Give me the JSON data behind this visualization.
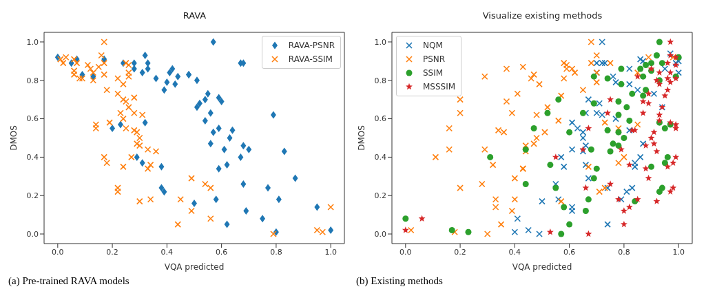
{
  "chart_data": [
    {
      "type": "scatter",
      "title": "RAVA",
      "xlabel": "VQA predicted",
      "ylabel": "DMOS",
      "xlim": [
        -0.05,
        1.05
      ],
      "ylim": [
        -0.05,
        1.05
      ],
      "xticks": [
        {
          "value": 0,
          "label": "0.0"
        },
        {
          "value": 0.2,
          "label": "0.2"
        },
        {
          "value": 0.4,
          "label": "0.4"
        },
        {
          "value": 0.6,
          "label": "0.6"
        },
        {
          "value": 0.8,
          "label": "0.8"
        },
        {
          "value": 1,
          "label": "1.0"
        }
      ],
      "yticks": [
        {
          "value": 0,
          "label": "0.0"
        },
        {
          "value": 0.2,
          "label": "0.2"
        },
        {
          "value": 0.4,
          "label": "0.4"
        },
        {
          "value": 0.6,
          "label": "0.6"
        },
        {
          "value": 0.8,
          "label": "0.8"
        },
        {
          "value": 1,
          "label": "1.0"
        }
      ],
      "legend": "top right",
      "annotations": [
        "(a) Pre-trained RAVA models"
      ],
      "series": [
        {
          "name": "RAVA-PSNR",
          "color": "#1f77b4",
          "marker": "diamond",
          "x": [
            0.0,
            0.05,
            0.07,
            0.09,
            0.13,
            0.17,
            0.24,
            0.28,
            0.28,
            0.32,
            0.33,
            0.33,
            0.31,
            0.36,
            0.4,
            0.42,
            0.41,
            0.44,
            0.43,
            0.39,
            0.48,
            0.32,
            0.23,
            0.2,
            0.29,
            0.31,
            0.38,
            0.38,
            0.39,
            0.57,
            0.67,
            0.68,
            0.48,
            0.51,
            0.55,
            0.54,
            0.52,
            0.51,
            0.59,
            0.6,
            0.56,
            0.54,
            0.79,
            0.59,
            0.57,
            0.64,
            0.63,
            0.56,
            0.61,
            0.68,
            0.7,
            0.83,
            0.67,
            0.62,
            0.59,
            0.87,
            0.68,
            0.77,
            0.81,
            0.5,
            0.58,
            0.69,
            0.95,
            0.75,
            0.62,
            0.8,
            1.0
          ],
          "values": [
            0.92,
            0.89,
            0.91,
            0.83,
            0.82,
            0.91,
            0.89,
            0.89,
            0.86,
            0.93,
            0.89,
            0.86,
            0.84,
            0.81,
            0.79,
            0.86,
            0.84,
            0.82,
            0.78,
            0.75,
            0.83,
            0.58,
            0.57,
            0.55,
            0.4,
            0.37,
            0.35,
            0.24,
            0.22,
            1.0,
            0.89,
            0.89,
            0.83,
            0.8,
            0.73,
            0.7,
            0.68,
            0.66,
            0.71,
            0.69,
            0.63,
            0.59,
            0.62,
            0.55,
            0.53,
            0.54,
            0.5,
            0.47,
            0.44,
            0.46,
            0.44,
            0.43,
            0.4,
            0.36,
            0.34,
            0.29,
            0.26,
            0.24,
            0.18,
            0.16,
            0.18,
            0.12,
            0.14,
            0.08,
            0.05,
            0.01,
            0.02
          ]
        },
        {
          "name": "RAVA-SSIM",
          "color": "#ff7f0e",
          "marker": "cross",
          "x": [
            0.03,
            0.02,
            0.01,
            0.06,
            0.07,
            0.06,
            0.06,
            0.08,
            0.09,
            0.11,
            0.12,
            0.13,
            0.13,
            0.15,
            0.16,
            0.17,
            0.17,
            0.17,
            0.18,
            0.22,
            0.24,
            0.22,
            0.24,
            0.25,
            0.26,
            0.25,
            0.26,
            0.26,
            0.26,
            0.28,
            0.28,
            0.23,
            0.24,
            0.31,
            0.19,
            0.14,
            0.14,
            0.25,
            0.28,
            0.29,
            0.3,
            0.29,
            0.3,
            0.33,
            0.36,
            0.17,
            0.18,
            0.27,
            0.24,
            0.33,
            0.34,
            0.22,
            0.22,
            0.3,
            0.34,
            0.45,
            0.44,
            0.49,
            0.54,
            0.56,
            0.49,
            0.56,
            0.79,
            0.95,
            0.97,
            1.0
          ],
          "values": [
            0.92,
            0.89,
            0.91,
            0.91,
            0.89,
            0.85,
            0.83,
            0.81,
            0.81,
            0.88,
            0.86,
            0.84,
            0.8,
            0.87,
            0.93,
            1.0,
            0.89,
            0.83,
            0.75,
            0.81,
            0.78,
            0.73,
            0.7,
            0.69,
            0.66,
            0.89,
            0.88,
            0.84,
            0.82,
            0.71,
            0.63,
            0.63,
            0.6,
            0.62,
            0.58,
            0.57,
            0.55,
            0.55,
            0.54,
            0.53,
            0.5,
            0.47,
            0.46,
            0.44,
            0.43,
            0.4,
            0.37,
            0.4,
            0.35,
            0.34,
            0.36,
            0.24,
            0.22,
            0.17,
            0.18,
            0.18,
            0.05,
            0.29,
            0.26,
            0.24,
            0.12,
            0.08,
            0.0,
            0.02,
            0.01,
            0.14
          ]
        }
      ]
    },
    {
      "type": "scatter",
      "title": "Visualize existing methods",
      "xlabel": "VQA predicted",
      "ylabel": "DMOS",
      "xlim": [
        -0.05,
        1.05
      ],
      "ylim": [
        -0.05,
        1.05
      ],
      "xticks": [
        {
          "value": 0,
          "label": "0.0"
        },
        {
          "value": 0.2,
          "label": "0.2"
        },
        {
          "value": 0.4,
          "label": "0.4"
        },
        {
          "value": 0.6,
          "label": "0.6"
        },
        {
          "value": 0.8,
          "label": "0.8"
        },
        {
          "value": 1,
          "label": "1.0"
        }
      ],
      "yticks": [
        {
          "value": 0,
          "label": "0.0"
        },
        {
          "value": 0.2,
          "label": "0.2"
        },
        {
          "value": 0.4,
          "label": "0.4"
        },
        {
          "value": 0.6,
          "label": "0.6"
        },
        {
          "value": 0.8,
          "label": "0.8"
        },
        {
          "value": 1,
          "label": "1.0"
        }
      ],
      "legend": "top left",
      "annotations": [
        "(b) Existing methods"
      ],
      "series": [
        {
          "name": "NQM",
          "color": "#1f77b4",
          "marker": "cross",
          "x": [
            0.72,
            0.7,
            0.72,
            0.73,
            0.7,
            0.76,
            0.77,
            0.82,
            0.82,
            0.86,
            0.87,
            0.95,
            0.97,
            1.0,
            1.0,
            0.99,
            0.85,
            0.91,
            0.94,
            0.67,
            0.71,
            0.66,
            0.7,
            0.72,
            0.77,
            0.61,
            0.63,
            0.65,
            0.65,
            0.66,
            0.77,
            0.82,
            0.85,
            0.87,
            0.61,
            0.65,
            0.57,
            0.58,
            0.66,
            0.67,
            0.86,
            0.84,
            0.84,
            0.55,
            0.74,
            0.81,
            0.83,
            0.79,
            0.56,
            0.5,
            0.61,
            0.61,
            0.74,
            0.45,
            0.49,
            0.4,
            0.41
          ],
          "values": [
            1.0,
            0.89,
            0.89,
            0.89,
            0.84,
            0.82,
            0.79,
            0.86,
            0.78,
            0.91,
            0.9,
            0.86,
            0.94,
            0.9,
            0.84,
            0.89,
            0.75,
            0.73,
            0.66,
            0.7,
            0.68,
            0.63,
            0.63,
            0.62,
            0.6,
            0.58,
            0.55,
            0.53,
            0.5,
            0.46,
            null,
            0.54,
            null,
            0.47,
            0.44,
            0.43,
            0.4,
            0.35,
            0.36,
            0.29,
            0.4,
            0.37,
            0.35,
            0.26,
            0.24,
            0.22,
            0.24,
            0.18,
            0.18,
            0.17,
            0.14,
            0.12,
            0.05,
            0.02,
            0.0,
            0.01,
            0.08
          ]
        },
        {
          "name": "PSNR",
          "color": "#ff7f0e",
          "marker": "cross",
          "x": [
            0.02,
            0.18,
            0.11,
            0.16,
            0.16,
            0.2,
            0.2,
            0.2,
            0.29,
            0.28,
            0.29,
            0.3,
            0.32,
            0.33,
            0.34,
            0.33,
            0.36,
            0.35,
            0.37,
            0.37,
            0.39,
            0.39,
            0.4,
            0.4,
            0.41,
            0.43,
            0.43,
            0.44,
            0.44,
            0.47,
            0.46,
            0.49,
            0.52,
            0.48,
            0.56,
            0.51,
            0.48,
            0.47,
            0.43,
            0.58,
            0.59,
            0.59,
            0.61,
            0.62,
            0.58,
            0.57,
            0.65,
            0.68,
            0.7,
            0.68,
            0.7,
            0.7,
            0.75,
            0.73,
            0.78,
            0.8,
            0.78,
            0.67,
            0.71,
            0.73,
            0.57,
            0.85,
            0.85,
            0.89,
            0.98
          ],
          "values": [
            0.02,
            0.01,
            0.4,
            0.55,
            0.44,
            0.7,
            0.63,
            0.24,
            0.82,
            0.26,
            0.44,
            0.0,
            0.36,
            0.14,
            0.54,
            0.18,
            0.53,
            0.05,
            0.86,
            0.69,
            0.63,
            0.12,
            0.18,
            0.29,
            0.73,
            0.34,
            0.87,
            0.46,
            0.43,
            0.83,
            0.81,
            0.78,
            0.66,
            0.62,
            0.59,
            0.53,
            0.5,
            0.47,
            0.34,
            0.89,
            0.88,
            0.86,
            0.86,
            0.84,
            0.81,
            0.72,
            0.75,
            1.0,
            0.93,
            0.89,
            0.84,
            0.79,
            0.89,
            0.58,
            0.55,
            0.4,
            0.37,
            0.35,
            0.22,
            0.24,
            0.17,
            0.57,
            0.84,
            0.92,
            0.92
          ]
        },
        {
          "name": "SSIM",
          "color": "#2ca02c",
          "marker": "circle",
          "x": [
            0.93,
            0.92,
            0.79,
            0.86,
            0.88,
            0.9,
            0.94,
            0.87,
            0.9,
            0.93,
            1.0,
            0.99,
            0.69,
            0.74,
            0.79,
            0.88,
            0.87,
            0.83,
            0.56,
            0.69,
            0.78,
            0.81,
            0.52,
            0.65,
            0.78,
            0.82,
            0.93,
            0.97,
            0.47,
            0.6,
            0.74,
            0.78,
            0.8,
            0.95,
            0.76,
            0.78,
            0.75,
            0.68,
            0.44,
            0.96,
            0.95,
            0.9,
            0.53,
            0.7,
            0.69,
            0.44,
            0.55,
            0.94,
            0.93,
            0.67,
            0.84,
            0.58,
            0.66,
            0.6,
            0.57,
            0.0,
            0.17,
            0.23,
            0.31
          ],
          "values": [
            1.0,
            0.93,
            0.86,
            0.86,
            0.88,
            0.89,
            0.89,
            0.82,
            0.85,
            0.8,
            0.92,
            0.82,
            0.82,
            0.81,
            0.78,
            0.75,
            0.72,
            0.73,
            0.7,
            0.68,
            0.69,
            0.66,
            0.63,
            0.63,
            0.62,
            0.59,
            0.58,
            0.57,
            0.55,
            0.53,
            0.54,
            0.53,
            0.5,
            0.55,
            0.47,
            0.46,
            0.43,
            0.44,
            0.44,
            0.4,
            0.37,
            0.35,
            0.36,
            0.34,
            0.29,
            0.26,
            0.24,
            0.24,
            0.22,
            0.18,
            0.17,
            0.14,
            0.12,
            0.05,
            0.0,
            0.08,
            0.02,
            0.01,
            0.4
          ]
        },
        {
          "name": "MSSSIM",
          "color": "#d62728",
          "marker": "star",
          "x": [
            0.97,
            0.97,
            0.99,
            0.9,
            0.93,
            0.96,
            0.99,
            0.97,
            0.99,
            0.85,
            0.92,
            0.93,
            0.96,
            0.97,
            0.96,
            0.95,
            0.89,
            0.87,
            0.89,
            0.75,
            0.94,
            0.87,
            0.93,
            0.93,
            0.74,
            0.97,
            0.99,
            0.99,
            0.91,
            0.9,
            0.91,
            0.88,
            0.92,
            0.83,
            0.84,
            0.67,
            0.65,
            0.79,
            0.55,
            0.99,
            0.98,
            0.96,
            0.82,
            0.88,
            0.89,
            0.75,
            0.66,
            0.98,
            0.97,
            0.78,
            0.85,
            0.82,
            0.8,
            0.92,
            0.8,
            0.53,
            0.67,
            0.0,
            0.06
          ],
          "values": [
            1.0,
            0.93,
            0.92,
            0.86,
            0.84,
            0.89,
            0.88,
            0.84,
            0.81,
            0.82,
            0.8,
            0.78,
            0.81,
            0.79,
            0.75,
            0.72,
            0.73,
            0.69,
            0.68,
            0.7,
            0.66,
            0.63,
            0.62,
            0.59,
            0.63,
            0.58,
            0.57,
            0.55,
            0.53,
            0.5,
            0.47,
            0.46,
            0.43,
            0.54,
            0.54,
            0.55,
            0.44,
            0.44,
            0.4,
            0.4,
            0.37,
            0.35,
            0.36,
            0.34,
            0.29,
            0.26,
            0.24,
            0.24,
            0.22,
            0.18,
            0.18,
            0.14,
            0.12,
            0.17,
            0.05,
            0.01,
            0.0,
            0.02,
            0.08
          ]
        }
      ]
    }
  ]
}
